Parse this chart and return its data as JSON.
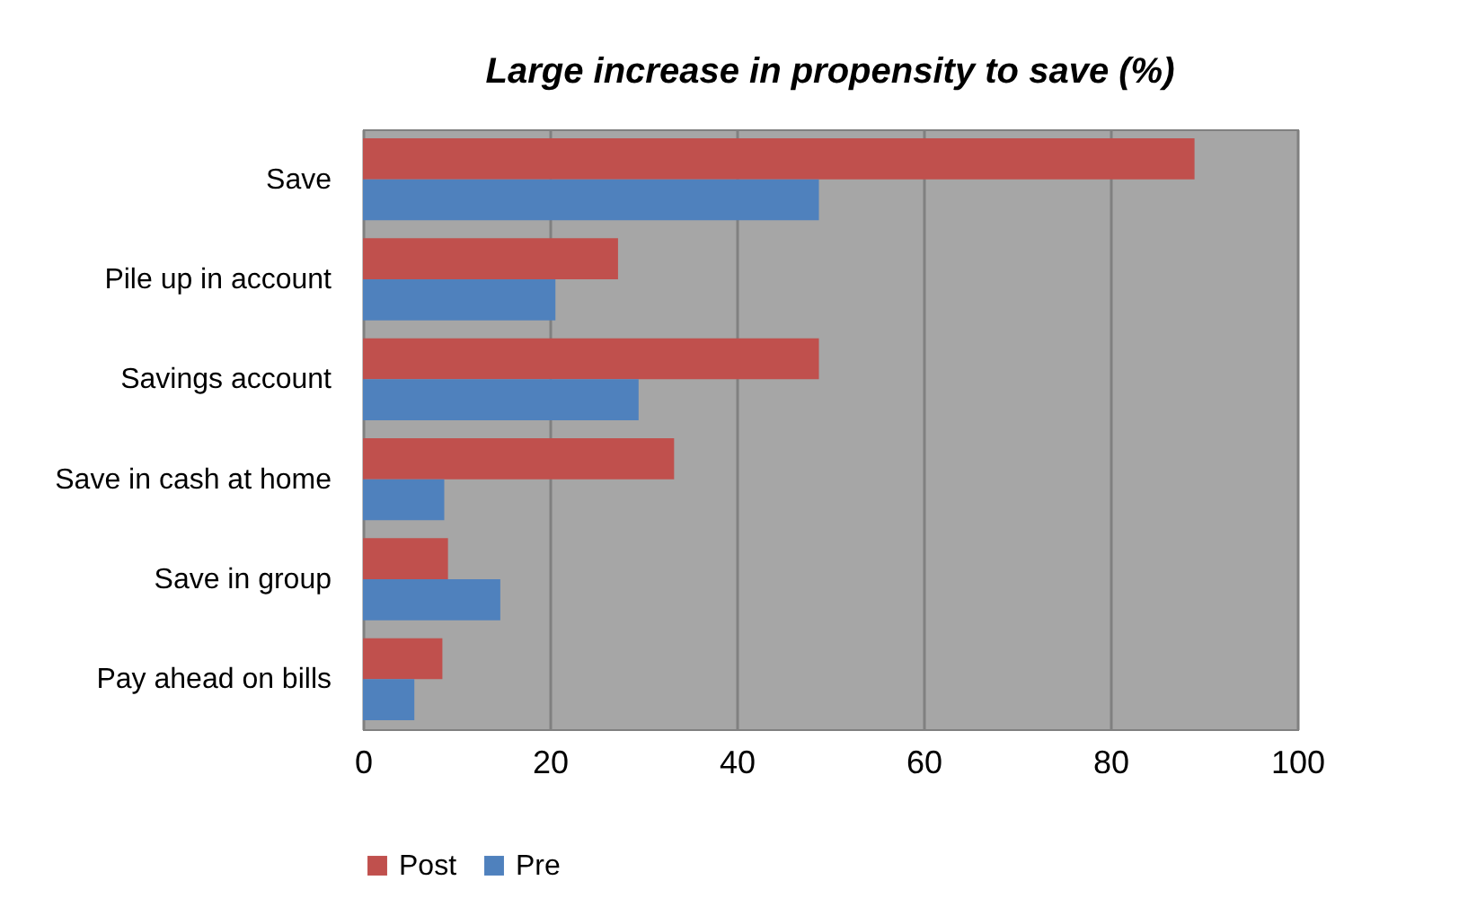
{
  "chart_data": {
    "type": "bar",
    "orientation": "horizontal",
    "title": "Large increase in propensity to save (%)",
    "categories": [
      "Save",
      "Pile up in account",
      "Savings account",
      "Save in cash at home",
      "Save in group",
      "Pay ahead on bills"
    ],
    "series": [
      {
        "name": "Post",
        "color": "#c0504d",
        "values": [
          89,
          27.3,
          48.8,
          33.3,
          9.1,
          8.5
        ]
      },
      {
        "name": "Pre",
        "color": "#4f81bd",
        "values": [
          48.8,
          20.6,
          29.5,
          8.7,
          14.7,
          5.5
        ]
      }
    ],
    "xlim": [
      0,
      100
    ],
    "xticks": [
      0,
      20,
      40,
      60,
      80,
      100
    ],
    "grid": "x",
    "legend": "bottom"
  }
}
